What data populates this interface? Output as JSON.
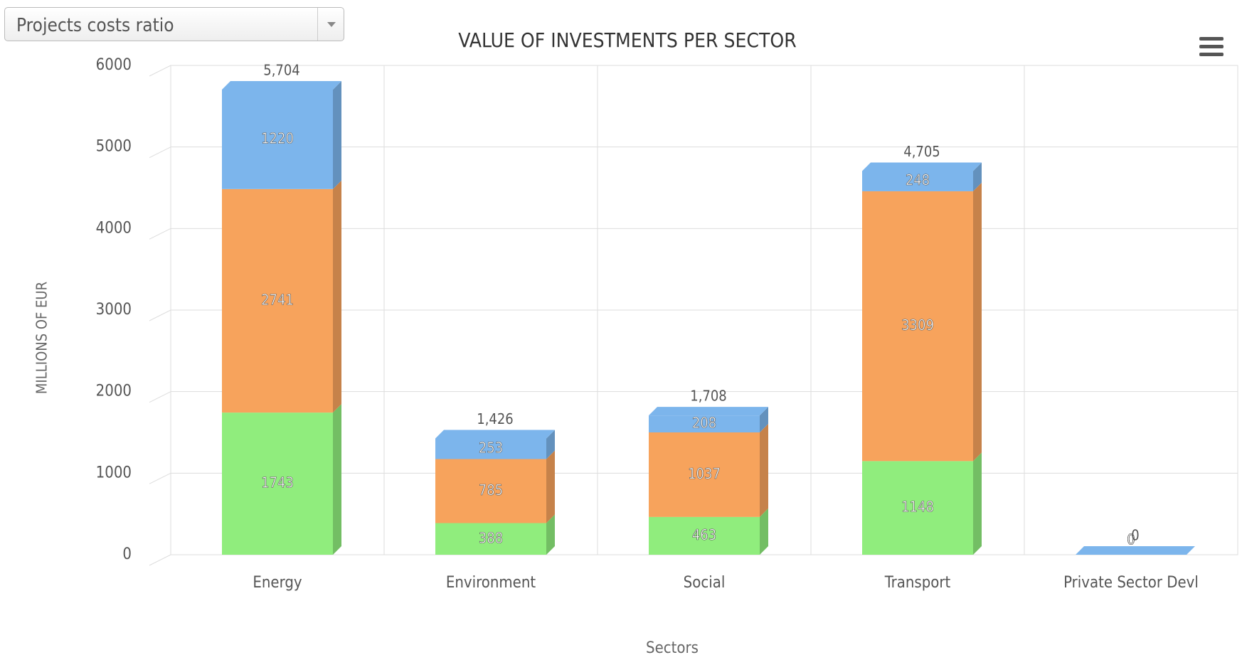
{
  "dropdown": {
    "label": "Projects costs ratio"
  },
  "chart_data": {
    "type": "bar",
    "stacked": true,
    "title": "VALUE OF INVESTMENTS PER SECTOR",
    "y_label": "MILLIONS OF EUR",
    "x_label": "Sectors",
    "categories": [
      "Energy",
      "Environment",
      "Social",
      "Transport",
      "Private Sector Devl"
    ],
    "series": [
      {
        "color": "#90ed7d",
        "values": [
          1743,
          388,
          463,
          1148,
          0
        ]
      },
      {
        "color": "#f7a35c",
        "values": [
          2741,
          785,
          1037,
          3309,
          0
        ]
      },
      {
        "color": "#7cb5ec",
        "values": [
          1220,
          253,
          208,
          248,
          0
        ]
      }
    ],
    "totals": [
      5704,
      1426,
      1708,
      4705,
      0
    ],
    "total_labels": [
      "5,704",
      "1,426",
      "1,708",
      "4,705",
      "0"
    ],
    "ylim": [
      0,
      6000
    ],
    "yticks": [
      0,
      1000,
      2000,
      3000,
      4000,
      5000,
      6000
    ],
    "grid": true
  }
}
